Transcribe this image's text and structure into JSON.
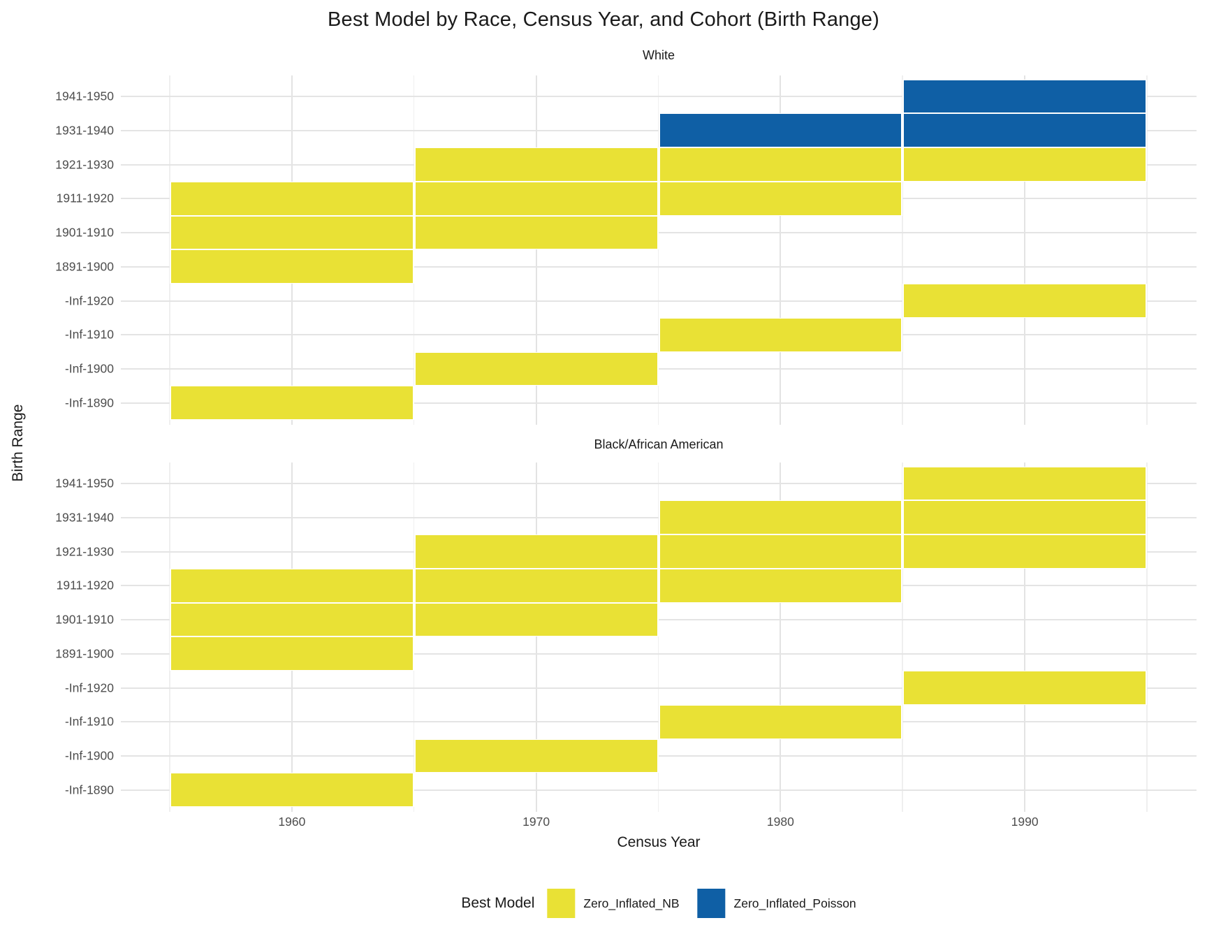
{
  "title": "Best Model by Race, Census Year, and Cohort (Birth Range)",
  "chart_data": {
    "type": "heatmap",
    "title": "Best Model by Race, Census Year, and Cohort (Birth Range)",
    "xlabel": "Census Year",
    "ylabel": "Birth Range",
    "x_ticks": [
      1960,
      1970,
      1980,
      1990
    ],
    "x_tick_labels": [
      "1960",
      "1970",
      "1980",
      "1990"
    ],
    "x_range": [
      1955,
      1995
    ],
    "tile_width_years": 10,
    "grid": "on",
    "legend_position": "bottom",
    "y_categories": [
      "1941-1950",
      "1931-1940",
      "1921-1930",
      "1911-1920",
      "1901-1910",
      "1891-1900",
      "-Inf-1920",
      "-Inf-1910",
      "-Inf-1900",
      "-Inf-1890"
    ],
    "facets": [
      {
        "label": "White",
        "tiles": [
          {
            "y": "1941-1950",
            "census_year": 1990,
            "model": "Zero_Inflated_Poisson"
          },
          {
            "y": "1931-1940",
            "census_year": 1980,
            "model": "Zero_Inflated_Poisson"
          },
          {
            "y": "1931-1940",
            "census_year": 1990,
            "model": "Zero_Inflated_Poisson"
          },
          {
            "y": "1921-1930",
            "census_year": 1970,
            "model": "Zero_Inflated_NB"
          },
          {
            "y": "1921-1930",
            "census_year": 1980,
            "model": "Zero_Inflated_NB"
          },
          {
            "y": "1921-1930",
            "census_year": 1990,
            "model": "Zero_Inflated_NB"
          },
          {
            "y": "1911-1920",
            "census_year": 1960,
            "model": "Zero_Inflated_NB"
          },
          {
            "y": "1911-1920",
            "census_year": 1970,
            "model": "Zero_Inflated_NB"
          },
          {
            "y": "1911-1920",
            "census_year": 1980,
            "model": "Zero_Inflated_NB"
          },
          {
            "y": "1901-1910",
            "census_year": 1960,
            "model": "Zero_Inflated_NB"
          },
          {
            "y": "1901-1910",
            "census_year": 1970,
            "model": "Zero_Inflated_NB"
          },
          {
            "y": "1891-1900",
            "census_year": 1960,
            "model": "Zero_Inflated_NB"
          },
          {
            "y": "-Inf-1920",
            "census_year": 1990,
            "model": "Zero_Inflated_NB"
          },
          {
            "y": "-Inf-1910",
            "census_year": 1980,
            "model": "Zero_Inflated_NB"
          },
          {
            "y": "-Inf-1900",
            "census_year": 1970,
            "model": "Zero_Inflated_NB"
          },
          {
            "y": "-Inf-1890",
            "census_year": 1960,
            "model": "Zero_Inflated_NB"
          }
        ]
      },
      {
        "label": "Black/African American",
        "tiles": [
          {
            "y": "1941-1950",
            "census_year": 1990,
            "model": "Zero_Inflated_NB"
          },
          {
            "y": "1931-1940",
            "census_year": 1980,
            "model": "Zero_Inflated_NB"
          },
          {
            "y": "1931-1940",
            "census_year": 1990,
            "model": "Zero_Inflated_NB"
          },
          {
            "y": "1921-1930",
            "census_year": 1970,
            "model": "Zero_Inflated_NB"
          },
          {
            "y": "1921-1930",
            "census_year": 1980,
            "model": "Zero_Inflated_NB"
          },
          {
            "y": "1921-1930",
            "census_year": 1990,
            "model": "Zero_Inflated_NB"
          },
          {
            "y": "1911-1920",
            "census_year": 1960,
            "model": "Zero_Inflated_NB"
          },
          {
            "y": "1911-1920",
            "census_year": 1970,
            "model": "Zero_Inflated_NB"
          },
          {
            "y": "1911-1920",
            "census_year": 1980,
            "model": "Zero_Inflated_NB"
          },
          {
            "y": "1901-1910",
            "census_year": 1960,
            "model": "Zero_Inflated_NB"
          },
          {
            "y": "1901-1910",
            "census_year": 1970,
            "model": "Zero_Inflated_NB"
          },
          {
            "y": "1891-1900",
            "census_year": 1960,
            "model": "Zero_Inflated_NB"
          },
          {
            "y": "-Inf-1920",
            "census_year": 1990,
            "model": "Zero_Inflated_NB"
          },
          {
            "y": "-Inf-1910",
            "census_year": 1980,
            "model": "Zero_Inflated_NB"
          },
          {
            "y": "-Inf-1900",
            "census_year": 1970,
            "model": "Zero_Inflated_NB"
          },
          {
            "y": "-Inf-1890",
            "census_year": 1960,
            "model": "Zero_Inflated_NB"
          }
        ]
      }
    ],
    "legend": {
      "title": "Best Model",
      "entries": [
        {
          "label": "Zero_Inflated_NB",
          "color": "#E9E135"
        },
        {
          "label": "Zero_Inflated_Poisson",
          "color": "#0F5FA5"
        }
      ]
    }
  }
}
